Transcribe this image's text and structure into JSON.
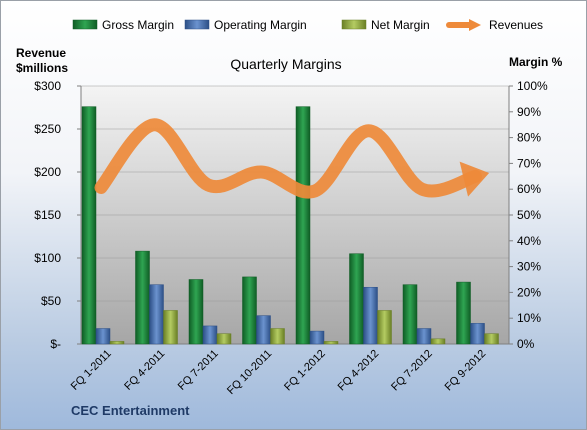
{
  "chart_data": {
    "type": "bar",
    "title": "Quarterly Margins",
    "source_label": "CEC Entertainment",
    "left_axis_label_line1": "Revenue",
    "left_axis_label_line2": "$millions",
    "right_axis_label": "Margin %",
    "categories": [
      "FQ 1-2011",
      "FQ 4-2011",
      "FQ 7-2011",
      "FQ 10-2011",
      "FQ 1-2012",
      "FQ 4-2012",
      "FQ 7-2012",
      "FQ 9-2012"
    ],
    "left_ticks": [
      "$-",
      "$50",
      "$100",
      "$150",
      "$200",
      "$250",
      "$300"
    ],
    "right_ticks": [
      "0%",
      "10%",
      "20%",
      "30%",
      "40%",
      "50%",
      "60%",
      "70%",
      "80%",
      "90%",
      "100%"
    ],
    "ylim_left": [
      0,
      300
    ],
    "ylim_right": [
      0,
      100
    ],
    "series": [
      {
        "name": "Gross Margin",
        "axis": "right",
        "color": "#1e8a3c",
        "values": [
          92,
          36,
          25,
          26,
          92,
          35,
          23,
          24
        ]
      },
      {
        "name": "Operating Margin",
        "axis": "right",
        "color": "#4f79b8",
        "values": [
          6,
          23,
          7,
          11,
          5,
          22,
          6,
          8
        ]
      },
      {
        "name": "Net Margin",
        "axis": "right",
        "color": "#9bb54a",
        "values": [
          1,
          13,
          4,
          6,
          1,
          13,
          2,
          4
        ]
      },
      {
        "name": "Revenues",
        "axis": "left",
        "color": "#ee8a3a",
        "type": "line",
        "values": [
          182,
          255,
          185,
          200,
          178,
          248,
          180,
          195
        ]
      }
    ],
    "legend_position": "top",
    "grid": true
  }
}
